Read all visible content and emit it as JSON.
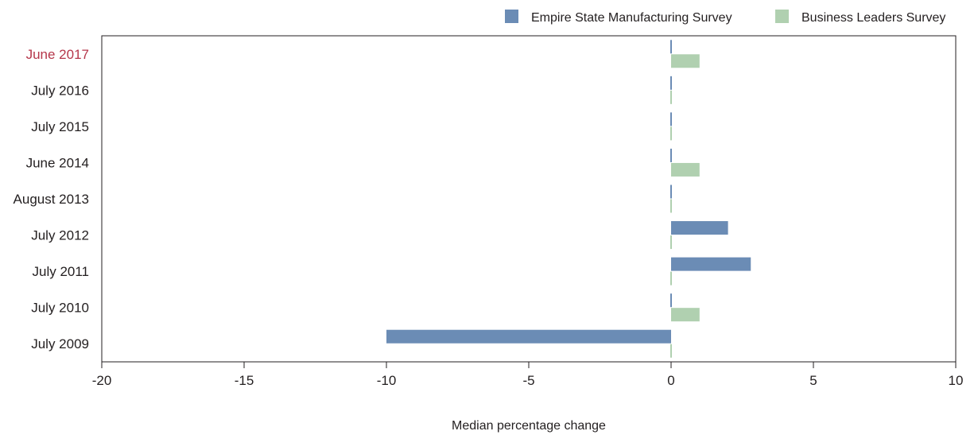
{
  "chart_data": {
    "type": "bar",
    "orientation": "horizontal",
    "categories": [
      "June 2017",
      "July 2016",
      "July 2015",
      "June 2014",
      "August 2013",
      "July 2012",
      "July 2011",
      "July 2010",
      "July 2009"
    ],
    "highlight_category": "June 2017",
    "series": [
      {
        "name": "Empire State Manufacturing Survey",
        "color": "#6b8cb5",
        "values": [
          0,
          0,
          0,
          0,
          0,
          2,
          2.8,
          0,
          -10
        ]
      },
      {
        "name": "Business Leaders Survey",
        "color": "#b0d0b0",
        "values": [
          1,
          0,
          0,
          1,
          0,
          0,
          0,
          1,
          0
        ]
      }
    ],
    "xlabel": "Median percentage change",
    "xlim": [
      -20,
      10
    ],
    "xticks": [
      -20,
      -15,
      -10,
      -5,
      0,
      5,
      10
    ],
    "legend_position": "top-right",
    "grid": false,
    "highlight_color": "#b5364a"
  }
}
